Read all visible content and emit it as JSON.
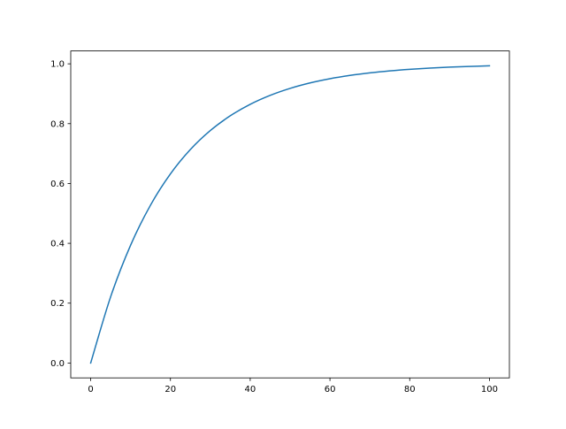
{
  "chart_data": {
    "type": "line",
    "title": "",
    "xlabel": "",
    "ylabel": "",
    "xlim": [
      -5,
      105
    ],
    "ylim": [
      -0.0497,
      1.043
    ],
    "grid": false,
    "x_ticks": [
      "0",
      "20",
      "40",
      "60",
      "80",
      "100"
    ],
    "y_ticks": [
      "0.0",
      "0.2",
      "0.4",
      "0.6",
      "0.8",
      "1.0"
    ],
    "series": [
      {
        "color": "#1f77b4",
        "x": [
          0,
          5,
          10,
          15,
          20,
          25,
          30,
          35,
          40,
          45,
          50,
          55,
          60,
          65,
          70,
          75,
          80,
          85,
          90,
          95,
          100
        ],
        "y": [
          0,
          0.2212,
          0.3935,
          0.5276,
          0.6321,
          0.7135,
          0.7769,
          0.8262,
          0.8647,
          0.8946,
          0.9179,
          0.9361,
          0.9502,
          0.9612,
          0.9698,
          0.9765,
          0.9817,
          0.9857,
          0.9889,
          0.9913,
          0.9933
        ]
      }
    ]
  }
}
